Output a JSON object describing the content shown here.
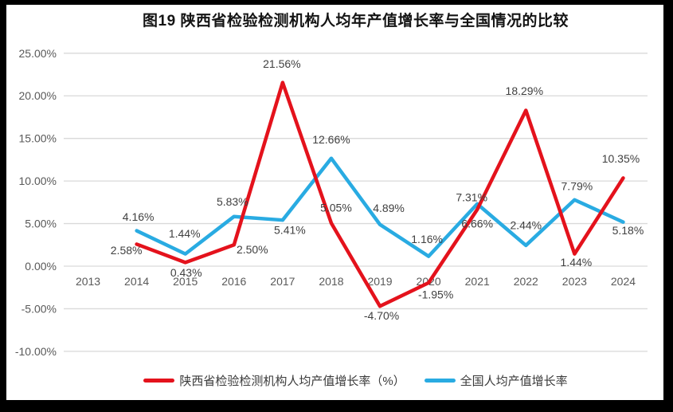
{
  "title": "图19 陕西省检验检测机构人均年产值增长率与全国情况的比较",
  "chart_data": {
    "type": "line",
    "categories": [
      "2013",
      "2014",
      "2015",
      "2016",
      "2017",
      "2018",
      "2019",
      "2020",
      "2021",
      "2022",
      "2023",
      "2024"
    ],
    "ylim": [
      -10,
      25
    ],
    "grid": true,
    "legend_position": "bottom",
    "yticks": [
      {
        "v": 25,
        "label": "25.00%"
      },
      {
        "v": 20,
        "label": "20.00%"
      },
      {
        "v": 15,
        "label": "15.00%"
      },
      {
        "v": 10,
        "label": "10.00%"
      },
      {
        "v": 5,
        "label": "5.00%"
      },
      {
        "v": 0,
        "label": "0.00%"
      },
      {
        "v": -5,
        "label": "-5.00%"
      },
      {
        "v": -10,
        "label": "-10.00%"
      }
    ],
    "series": [
      {
        "key": "shaanxi",
        "name": "陕西省检验检测机构人均产值增长率（%）",
        "color": "#e4121c",
        "values": [
          null,
          2.58,
          0.43,
          2.5,
          21.56,
          5.05,
          -4.7,
          -1.95,
          6.66,
          18.29,
          1.44,
          10.35
        ],
        "labels": [
          "",
          "2.58%",
          "0.43%",
          "2.50%",
          "21.56%",
          "5.05%",
          "-4.70%",
          "-1.95%",
          "6.66%",
          "18.29%",
          "1.44%",
          "10.35%"
        ],
        "label_offsets": [
          [
            0,
            0
          ],
          [
            -13,
            8
          ],
          [
            1,
            13
          ],
          [
            23,
            6
          ],
          [
            -1,
            -23
          ],
          [
            6,
            -19
          ],
          [
            2,
            12
          ],
          [
            9,
            15
          ],
          [
            0,
            18
          ],
          [
            -2,
            -24
          ],
          [
            2,
            11
          ],
          [
            -3,
            -24
          ]
        ]
      },
      {
        "key": "national",
        "name": "全国人均产值增长率",
        "color": "#29abe2",
        "values": [
          null,
          4.16,
          1.44,
          5.83,
          5.41,
          12.66,
          4.89,
          1.16,
          7.31,
          2.44,
          7.79,
          5.18
        ],
        "labels": [
          "",
          "4.16%",
          "1.44%",
          "5.83%",
          "5.41%",
          "12.66%",
          "4.89%",
          "1.16%",
          "7.31%",
          "2.44%",
          "7.79%",
          "5.18%"
        ],
        "label_offsets": [
          [
            0,
            0
          ],
          [
            2,
            -17
          ],
          [
            -1,
            -25
          ],
          [
            -2,
            -18
          ],
          [
            9,
            13
          ],
          [
            0,
            -23
          ],
          [
            11,
            -20
          ],
          [
            -2,
            -21
          ],
          [
            -7,
            -8
          ],
          [
            0,
            -25
          ],
          [
            3,
            -17
          ],
          [
            6,
            11
          ]
        ]
      }
    ]
  }
}
